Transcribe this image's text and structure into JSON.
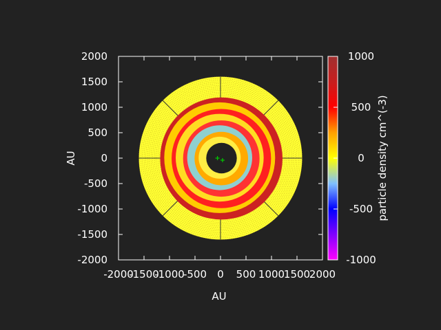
{
  "chart_data": {
    "type": "heatmap",
    "title": "",
    "xlabel": "AU",
    "ylabel": "AU",
    "xlim": [
      -2000,
      2000
    ],
    "ylim": [
      -2000,
      2000
    ],
    "xticks": [
      "-2000",
      "-1500",
      "-1000",
      "-500",
      "0",
      "500",
      "1000",
      "1500",
      "2000"
    ],
    "yticks": [
      "2000",
      "1500",
      "1000",
      "500",
      "0",
      "-500",
      "-1000",
      "-1500",
      "-2000"
    ],
    "colorbar": {
      "label": "particle density cm^(-3)",
      "range": [
        -1000,
        1000
      ],
      "ticks": [
        "1000",
        "500",
        "0",
        "-500",
        "-1000"
      ],
      "stops": [
        {
          "value": -1000,
          "color": "#ff00ff"
        },
        {
          "value": -750,
          "color": "#8000ff"
        },
        {
          "value": -500,
          "color": "#0000ff"
        },
        {
          "value": -250,
          "color": "#80c0ff"
        },
        {
          "value": 0,
          "color": "#ffff00"
        },
        {
          "value": 250,
          "color": "#ffa000"
        },
        {
          "value": 500,
          "color": "#ff0000"
        },
        {
          "value": 750,
          "color": "#c81e1e"
        },
        {
          "value": 1000,
          "color": "#a03030"
        }
      ]
    },
    "disk": {
      "outer_radius_au": 1600,
      "inner_radius_au": 300,
      "spiral_rings_au": [
        400,
        560,
        760,
        960,
        1160
      ],
      "ring_colors": [
        "#cc2222",
        "#ffcc00",
        "#ff2020",
        "#ffdd22",
        "#ff3333",
        "#8fd0d0",
        "#ffaa00",
        "#ffee44"
      ],
      "background_color": "#ffff33",
      "stars_au": [
        [
          -60,
          0
        ],
        [
          40,
          -40
        ]
      ],
      "star_color": "#00cc00"
    }
  }
}
